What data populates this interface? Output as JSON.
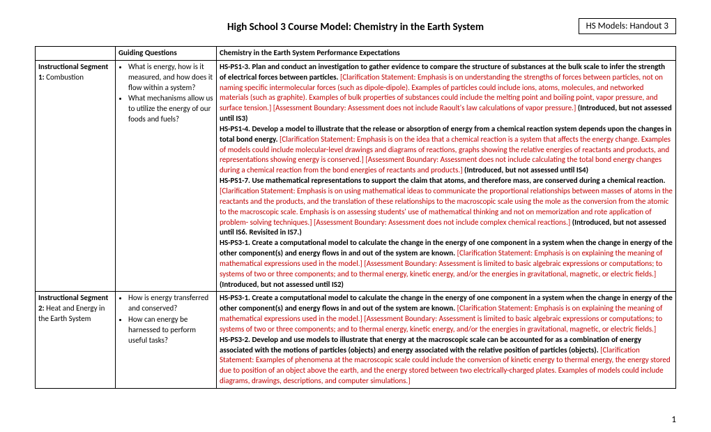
{
  "title": "High School 3 Course Model: Chemistry in the Earth System",
  "handout": "HS Models: Handout 3",
  "pageNumber": "1",
  "headers": {
    "col1": "",
    "col2": "Guiding Questions",
    "col3": "Chemistry in the Earth System Performance Expectations"
  },
  "seg1": {
    "labelBold": "Instructional Segment 1:",
    "labelRest": " Combustion",
    "q1": "What is energy, how is it measured, and how does it flow within a system?",
    "q2": "What mechanisms allow us to utilize the energy of our foods and fuels?",
    "pe1bold": "HS-PS1-3. Plan and conduct an investigation to gather evidence to compare the structure of substances at the bulk scale to infer the strength of electrical forces between particles.",
    "pe1red": " [Clarification Statement: Emphasis is on understanding the strengths of forces between particles, not on naming specific intermolecular forces (such as dipole-dipole). Examples of particles could include ions, atoms, molecules, and networked materials (such as graphite). Examples of bulk properties of substances could include the melting point and boiling point, vapor pressure, and surface tension.] [Assessment Boundary: Assessment does not include Raoult's law calculations of vapor pressure.]",
    "pe1note": " (Introduced, but not assessed until IS3)",
    "pe2bold": "HS-PS1-4. Develop a model to illustrate that the release or absorption of energy from a chemical reaction system depends upon the changes in total bond energy.",
    "pe2red": " [Clarification Statement: Emphasis is on the idea that a chemical reaction is a system that affects the energy change. Examples of models could include molecular-level drawings and diagrams of reactions, graphs showing the relative energies of reactants and products, and representations showing energy is conserved.] [Assessment Boundary: Assessment does not include calculating the total bond energy changes during a chemical reaction from the bond energies of reactants and products.]",
    "pe2note": " (Introduced, but not assessed until IS4)",
    "pe3bold": "HS-PS1-7. Use mathematical representations to support the claim that atoms, and therefore mass, are conserved during a chemical reaction.",
    "pe3red": " [Clarification Statement: Emphasis is on using mathematical ideas to communicate the proportional relationships between masses of atoms in the reactants and the products, and the translation of these relationships to the macroscopic scale using the mole as the conversion from the atomic to the macroscopic scale. Emphasis is on assessing students' use of mathematical thinking and not on memorization and rote application of problem- solving techniques.] [Assessment Boundary: Assessment does not include complex chemical reactions.]",
    "pe3note": " (Introduced, but not assessed until IS6. Revisited in IS7.)",
    "pe4bold": "HS-PS3-1. Create a computational model to calculate the change in the energy of one component in a system when the change in energy of the other component(s) and energy flows in and out of the system are known.",
    "pe4red": " [Clarification Statement: Emphasis is on explaining the meaning of mathematical expressions used in the model.] [Assessment Boundary: Assessment is limited to basic algebraic expressions or computations; to systems of two or three components; and to thermal energy, kinetic energy, and/or the energies in gravitational, magnetic, or electric fields.]",
    "pe4note": " (Introduced, but not assessed until IS2)"
  },
  "seg2": {
    "labelBold": "Instructional Segment 2:",
    "labelRest": " Heat and Energy in the Earth System",
    "q1": "How is energy transferred and conserved?",
    "q2": "How can energy be harnessed to perform useful tasks?",
    "pe1bold": "HS-PS3-1. Create a computational model to calculate the change in the energy of one component in a system when the change in energy of the other component(s) and energy flows in and out of the system are known.",
    "pe1red": " [Clarification Statement: Emphasis is on explaining the meaning of mathematical expressions used in the model.] [Assessment Boundary: Assessment is limited to basic algebraic expressions or computations; to systems of two or three components; and to thermal energy, kinetic energy, and/or the energies in gravitational, magnetic, or electric fields.]",
    "pe2bold": "HS-PS3-2. Develop and use models to illustrate that energy at the macroscopic scale can be accounted for as a combination of energy associated with the motions of particles (objects) and energy associated with the relative position of particles (objects).",
    "pe2red": " [Clarification Statement: Examples of phenomena at the macroscopic scale could include the conversion of kinetic energy to thermal energy, the energy stored due to position of an object above the earth, and the energy stored between two electrically-charged plates. Examples of models could include diagrams, drawings, descriptions, and computer simulations.]"
  }
}
